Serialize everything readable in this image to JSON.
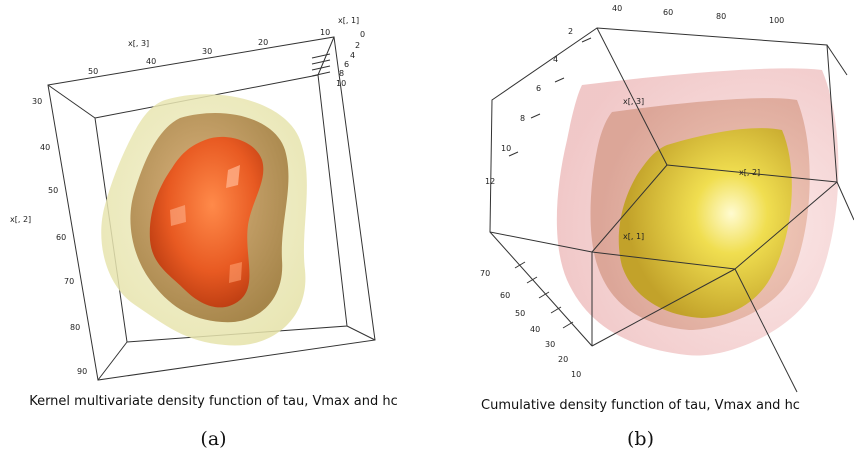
{
  "chart_data": [
    {
      "type": "3d-isosurface",
      "caption": "Kernel multivariate density function of tau, Vmax and hc",
      "panel_label": "(a)",
      "axes": {
        "x1": {
          "label": "x[, 1]",
          "ticks": [
            "10",
            "0",
            "2",
            "4",
            "6",
            "8",
            "10"
          ]
        },
        "x2": {
          "label": "x[, 2]",
          "ticks": [
            "30",
            "40",
            "50",
            "60",
            "70",
            "80",
            "90"
          ]
        },
        "x3": {
          "label": "x[, 3]",
          "ticks": [
            "50",
            "40",
            "30",
            "20"
          ]
        }
      },
      "surfaces": [
        {
          "level": "outer",
          "color": "#eeeec2"
        },
        {
          "level": "middle",
          "color": "#bb8a4a"
        },
        {
          "level": "inner",
          "color": "#e85a22"
        }
      ]
    },
    {
      "type": "3d-isosurface",
      "caption": "Cumulative density function of tau, Vmax and hc",
      "panel_label": "(b)",
      "axes": {
        "x1": {
          "label": "x[, 1]",
          "ticks": [
            "70",
            "60",
            "50",
            "40",
            "30",
            "20",
            "10"
          ]
        },
        "x2": {
          "label": "x[, 2]",
          "ticks": [
            "40",
            "60",
            "80",
            "100"
          ]
        },
        "x3": {
          "label": "x[, 3]",
          "ticks": [
            "2",
            "4",
            "6",
            "8",
            "10",
            "12"
          ]
        }
      },
      "surfaces": [
        {
          "level": "outer",
          "color": "#f4cccc"
        },
        {
          "level": "middle",
          "color": "#eab5a6"
        },
        {
          "level": "inner",
          "color": "#ddc430"
        }
      ]
    }
  ]
}
